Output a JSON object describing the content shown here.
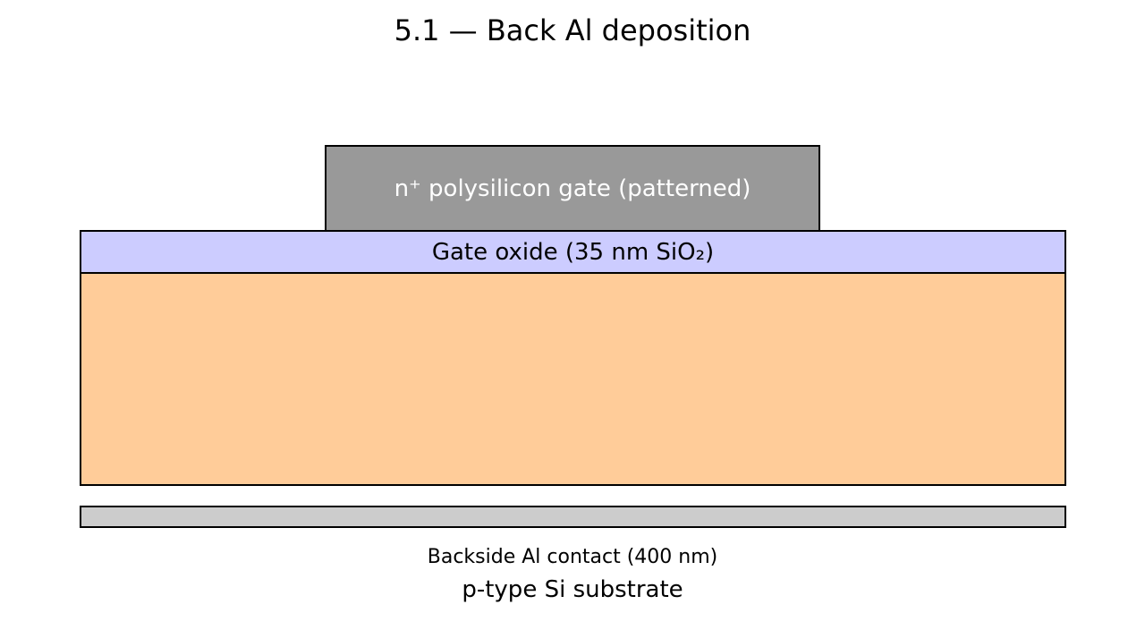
{
  "diagram": {
    "title": "5.1 — Back Al deposition",
    "layers": {
      "gate": {
        "label": "n⁺ polysilicon gate (patterned)",
        "fill": "#999999",
        "text_color": "#ffffff"
      },
      "oxide": {
        "label": "Gate oxide (35 nm SiO₂)",
        "fill": "#ccccff",
        "text_color": "#000000"
      },
      "substrate": {
        "label": "p-type Si substrate",
        "fill": "#ffcc99"
      },
      "backside_contact": {
        "label": "Backside Al contact (400 nm)",
        "fill": "#cccccc"
      }
    }
  }
}
